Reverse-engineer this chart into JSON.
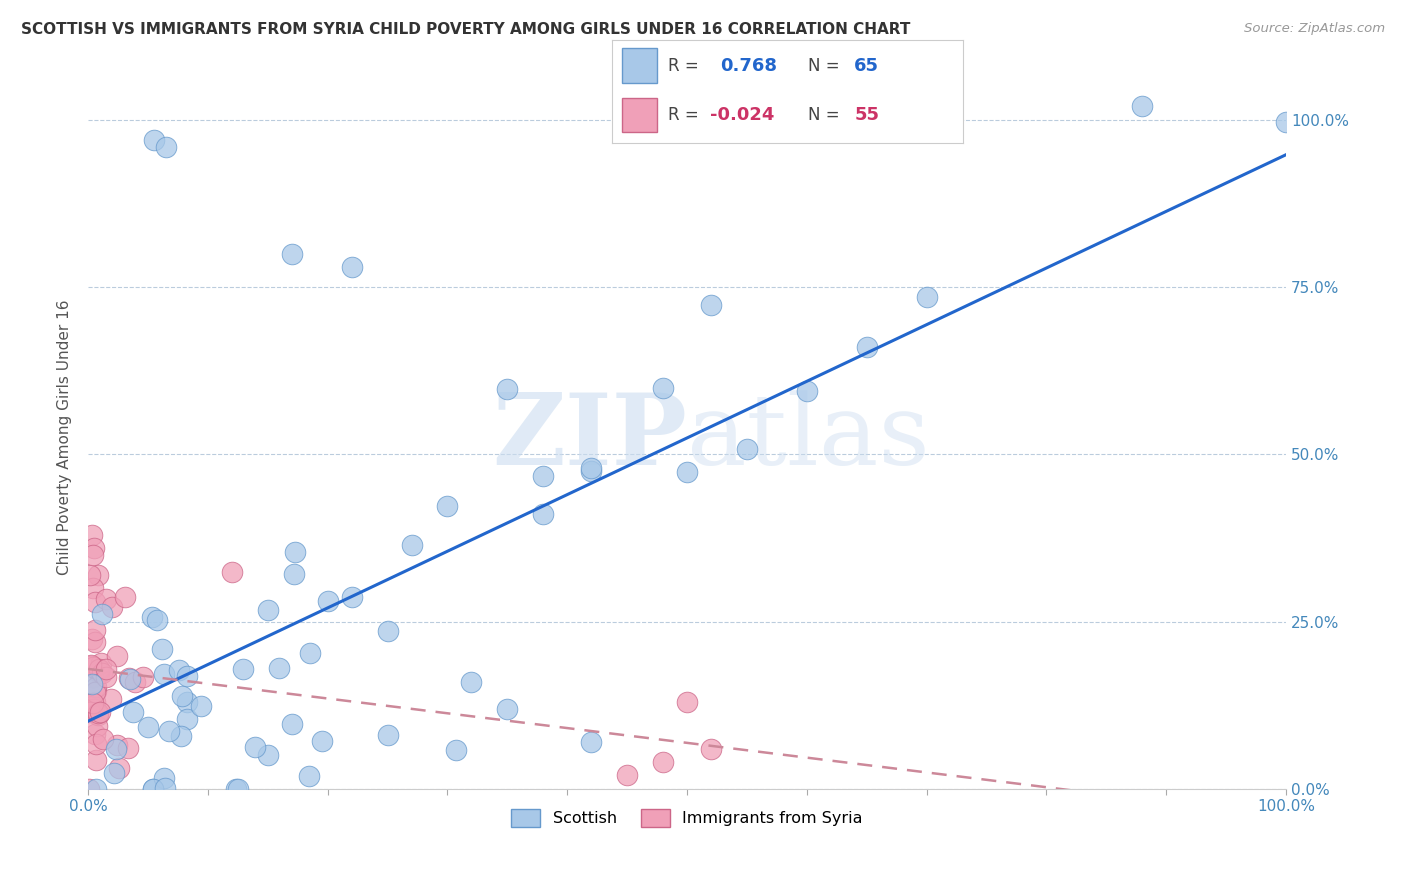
{
  "title": "SCOTTISH VS IMMIGRANTS FROM SYRIA CHILD POVERTY AMONG GIRLS UNDER 16 CORRELATION CHART",
  "source": "Source: ZipAtlas.com",
  "ylabel": "Child Poverty Among Girls Under 16",
  "scottish_color": "#a8c8e8",
  "scottish_edge": "#6699cc",
  "syria_color": "#f0a0b8",
  "syria_edge": "#cc6688",
  "regression_blue": "#2266cc",
  "regression_pink": "#cc8899",
  "R_scottish": 0.768,
  "N_scottish": 65,
  "R_syria": -0.024,
  "N_syria": 55,
  "watermark_zip": "ZIP",
  "watermark_atlas": "atlas",
  "scottish_label": "Scottish",
  "syria_label": "Immigrants from Syria",
  "title_fontsize": 11,
  "axis_tick_color": "#4488bb",
  "grid_color": "#bbccdd"
}
